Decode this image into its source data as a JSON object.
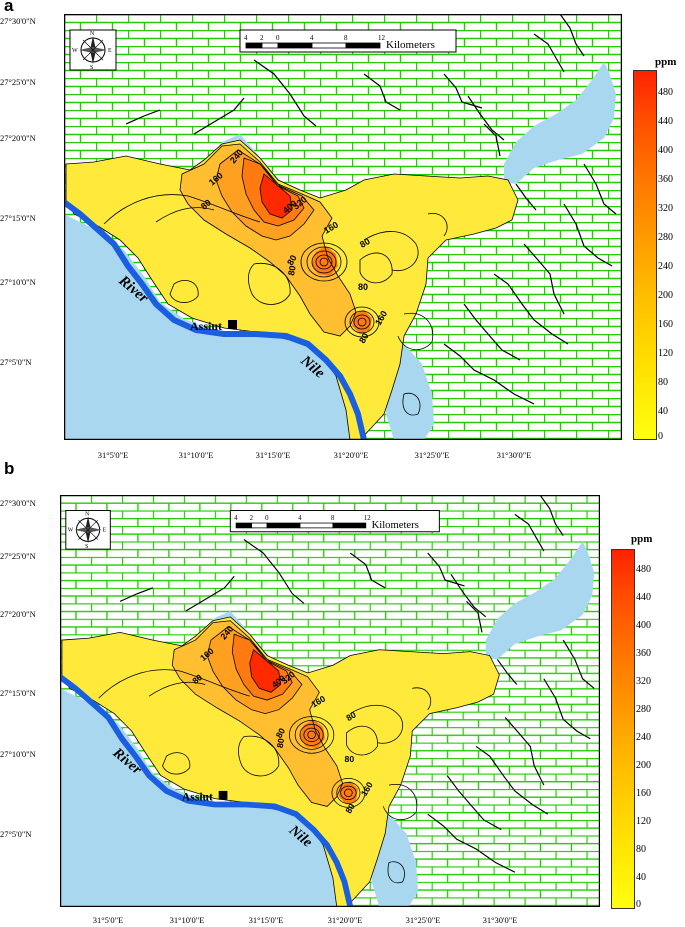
{
  "panels": [
    {
      "letter": "a",
      "lat_labels": [
        "27°30'0\"N",
        "27°25'0\"N",
        "27°20'0\"N",
        "27°15'0\"N",
        "27°10'0\"N",
        "27°5'0\"N"
      ],
      "lon_labels": [
        "31°5'0\"E",
        "31°10'0\"E",
        "31°15'0\"E",
        "31°20'0\"E",
        "31°25'0\"E",
        "31°30'0\"E"
      ],
      "legend_unit": "ppm",
      "legend_ticks": [
        "480",
        "440",
        "400",
        "360",
        "320",
        "280",
        "240",
        "200",
        "160",
        "120",
        "80",
        "40",
        "0"
      ]
    },
    {
      "letter": "b",
      "lat_labels": [
        "27°30'0\"N",
        "27°25'0\"N",
        "27°20'0\"N",
        "27°15'0\"N",
        "27°10'0\"N",
        "27°5'0\"N"
      ],
      "lon_labels": [
        "31°5'0\"E",
        "31°10'0\"E",
        "31°15'0\"E",
        "31°20'0\"E",
        "31°25'0\"E",
        "31°30'0\"E"
      ],
      "legend_unit": "ppm",
      "legend_ticks": [
        "480",
        "440",
        "400",
        "360",
        "320",
        "280",
        "240",
        "200",
        "160",
        "120",
        "80",
        "40",
        "0"
      ]
    }
  ],
  "map": {
    "scale_ticks": [
      "4",
      "2",
      "0",
      "4",
      "8",
      "12"
    ],
    "scale_unit": "Kilometers",
    "river_label_1": "River",
    "river_label_2": "Nile",
    "city_label": "Assiut",
    "compass_n": "N",
    "compass_s": "S",
    "compass_e": "E",
    "compass_w": "W",
    "contour_labels": [
      "80",
      "160",
      "240",
      "320",
      "400",
      "160",
      "80",
      "80",
      "80",
      "80",
      "160",
      "80"
    ]
  },
  "colors": {
    "brick_bg": "#ffffff",
    "brick_line": "#22cc00",
    "water": "#a9d7f0",
    "river": "#1a5fe0",
    "low": "#ffea3c",
    "mid": "#ffbf30",
    "high": "#ff7a10",
    "peak": "#ff2a00"
  }
}
